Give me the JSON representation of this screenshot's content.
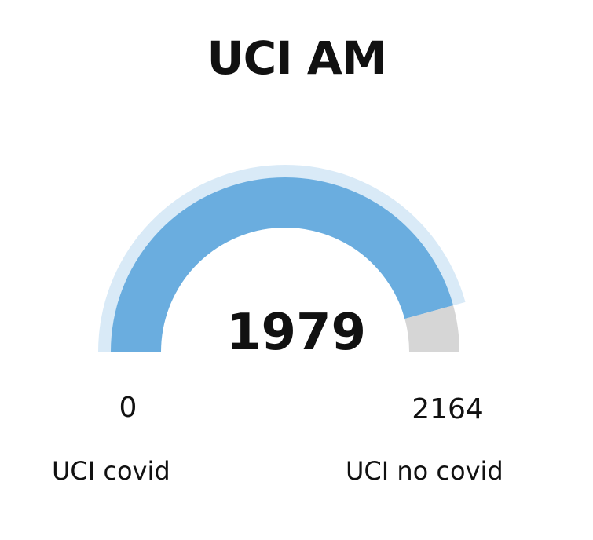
{
  "chart_data": {
    "type": "gauge",
    "title": "UCI AM",
    "value": 1979,
    "value_label": "1979",
    "min": 0,
    "max": 2164,
    "min_label": "0",
    "max_label": "2164",
    "left_caption": "UCI covid",
    "right_caption": "UCI no covid",
    "colors": {
      "value_fill": "#6aaddf",
      "remainder_fill": "#d6d6d6",
      "outer_band": "#d9eaf7",
      "text": "#111111"
    }
  }
}
